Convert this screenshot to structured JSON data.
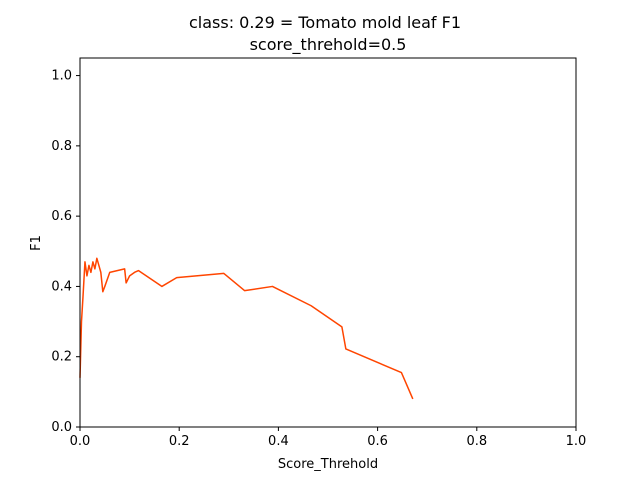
{
  "chart_data": {
    "type": "line",
    "title_line1": "class: 0.29 = Tomato mold leaf F1",
    "title_line2": "score_threhold=0.5",
    "xlabel": "Score_Threhold",
    "ylabel": "F1",
    "xlim": [
      0.0,
      1.0
    ],
    "ylim": [
      0.0,
      1.05
    ],
    "xticks": [
      0.0,
      0.2,
      0.4,
      0.6,
      0.8,
      1.0
    ],
    "yticks": [
      0.0,
      0.2,
      0.4,
      0.6,
      0.8,
      1.0
    ],
    "xtick_labels": [
      "0.0",
      "0.2",
      "0.4",
      "0.6",
      "0.8",
      "1.0"
    ],
    "ytick_labels": [
      "0.0",
      "0.2",
      "0.4",
      "0.6",
      "0.8",
      "1.0"
    ],
    "grid": false,
    "line_color": "#ff4500",
    "series": [
      {
        "x": [
          0.0,
          0.003,
          0.006,
          0.01,
          0.014,
          0.018,
          0.022,
          0.026,
          0.03,
          0.034,
          0.038,
          0.042,
          0.046,
          0.05,
          0.06,
          0.09,
          0.093,
          0.1,
          0.11,
          0.118,
          0.165,
          0.195,
          0.29,
          0.332,
          0.388,
          0.466,
          0.528,
          0.536,
          0.648,
          0.671
        ],
        "y": [
          0.14,
          0.3,
          0.37,
          0.47,
          0.43,
          0.46,
          0.44,
          0.47,
          0.45,
          0.48,
          0.46,
          0.44,
          0.385,
          0.4,
          0.44,
          0.45,
          0.41,
          0.43,
          0.44,
          0.445,
          0.4,
          0.425,
          0.437,
          0.388,
          0.4,
          0.345,
          0.285,
          0.222,
          0.155,
          0.08
        ]
      }
    ]
  }
}
